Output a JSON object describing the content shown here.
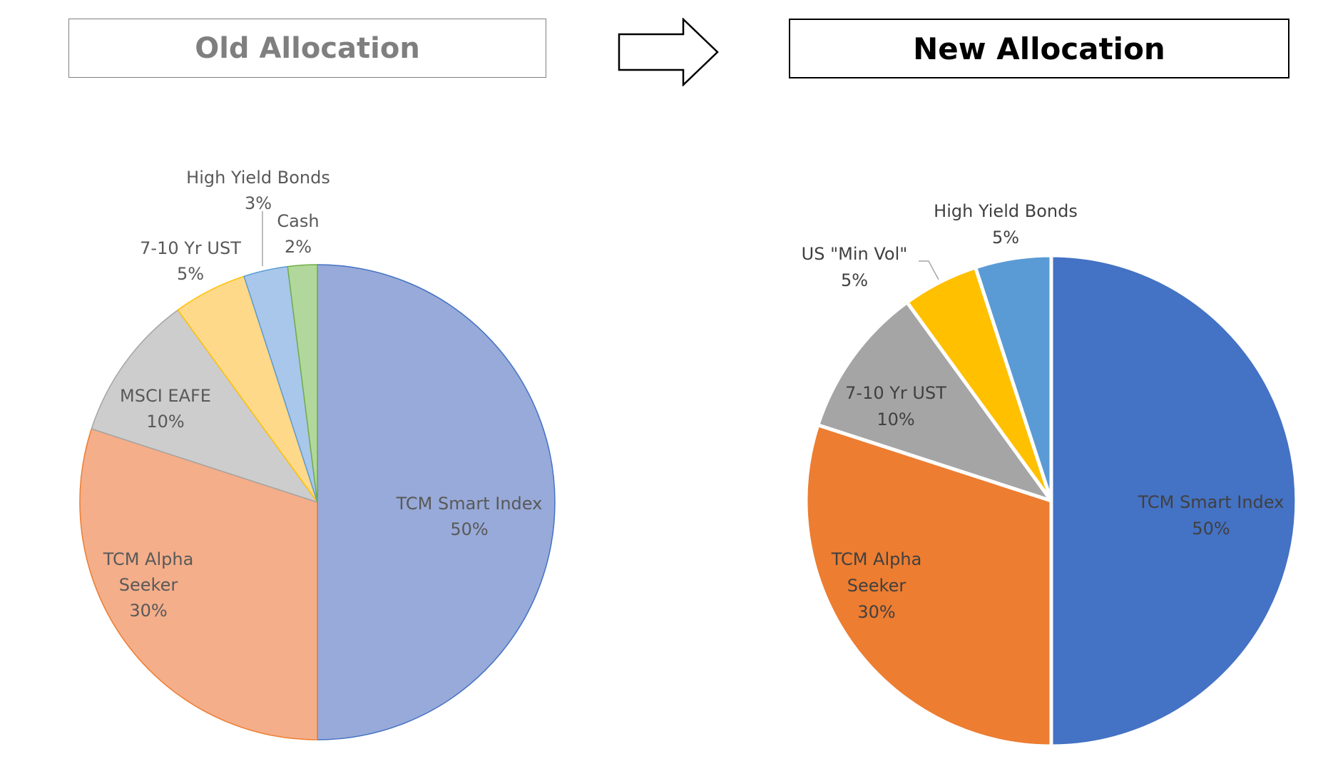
{
  "chart_data": [
    {
      "type": "pie",
      "title": "Old Allocation",
      "slices": [
        {
          "label": "TCM Smart Index",
          "value": 50,
          "pct": "50%",
          "color": "#98aad9",
          "stroke": "#4472c4"
        },
        {
          "label": "TCM Alpha Seeker",
          "value": 30,
          "pct": "30%",
          "color": "#f4ae8a",
          "stroke": "#ed7d31"
        },
        {
          "label": "MSCI EAFE",
          "value": 10,
          "pct": "10%",
          "color": "#cdcdcd",
          "stroke": "#a5a5a5"
        },
        {
          "label": "7-10 Yr UST",
          "value": 5,
          "pct": "5%",
          "color": "#ffd98a",
          "stroke": "#ffc000"
        },
        {
          "label": "High Yield Bonds",
          "value": 3,
          "pct": "3%",
          "color": "#a9c7ea",
          "stroke": "#5b9bd5"
        },
        {
          "label": "Cash",
          "value": 2,
          "pct": "2%",
          "color": "#b2d79c",
          "stroke": "#70ad47"
        }
      ]
    },
    {
      "type": "pie",
      "title": "New Allocation",
      "slices": [
        {
          "label": "TCM Smart Index",
          "value": 50,
          "pct": "50%",
          "color": "#4472c4"
        },
        {
          "label": "TCM Alpha Seeker",
          "value": 30,
          "pct": "30%",
          "color": "#ed7d31"
        },
        {
          "label": "7-10 Yr UST",
          "value": 10,
          "pct": "10%",
          "color": "#a5a5a5"
        },
        {
          "label": "US \"Min Vol\"",
          "value": 5,
          "pct": "5%",
          "color": "#ffc000"
        },
        {
          "label": "High Yield Bonds",
          "value": 5,
          "pct": "5%",
          "color": "#5b9bd5"
        }
      ]
    }
  ]
}
